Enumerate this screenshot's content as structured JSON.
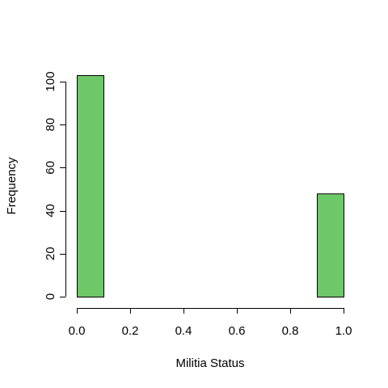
{
  "chart_data": {
    "type": "bar",
    "title": "",
    "xlabel": "Militia Status",
    "ylabel": "Frequency",
    "bins": [
      {
        "x0": 0.0,
        "x1": 0.1,
        "value": 103
      },
      {
        "x0": 0.1,
        "x1": 0.2,
        "value": 0
      },
      {
        "x0": 0.2,
        "x1": 0.3,
        "value": 0
      },
      {
        "x0": 0.3,
        "x1": 0.4,
        "value": 0
      },
      {
        "x0": 0.4,
        "x1": 0.5,
        "value": 0
      },
      {
        "x0": 0.5,
        "x1": 0.6,
        "value": 0
      },
      {
        "x0": 0.6,
        "x1": 0.7,
        "value": 0
      },
      {
        "x0": 0.7,
        "x1": 0.8,
        "value": 0
      },
      {
        "x0": 0.8,
        "x1": 0.9,
        "value": 0
      },
      {
        "x0": 0.9,
        "x1": 1.0,
        "value": 48
      }
    ],
    "xlim": [
      0,
      1
    ],
    "ylim": [
      0,
      103
    ],
    "xticks": [
      "0.0",
      "0.2",
      "0.4",
      "0.6",
      "0.8",
      "1.0"
    ],
    "yticks": [
      "0",
      "20",
      "40",
      "60",
      "80",
      "100"
    ],
    "bar_color": "#6DC867",
    "grid": false,
    "legend": "none"
  }
}
